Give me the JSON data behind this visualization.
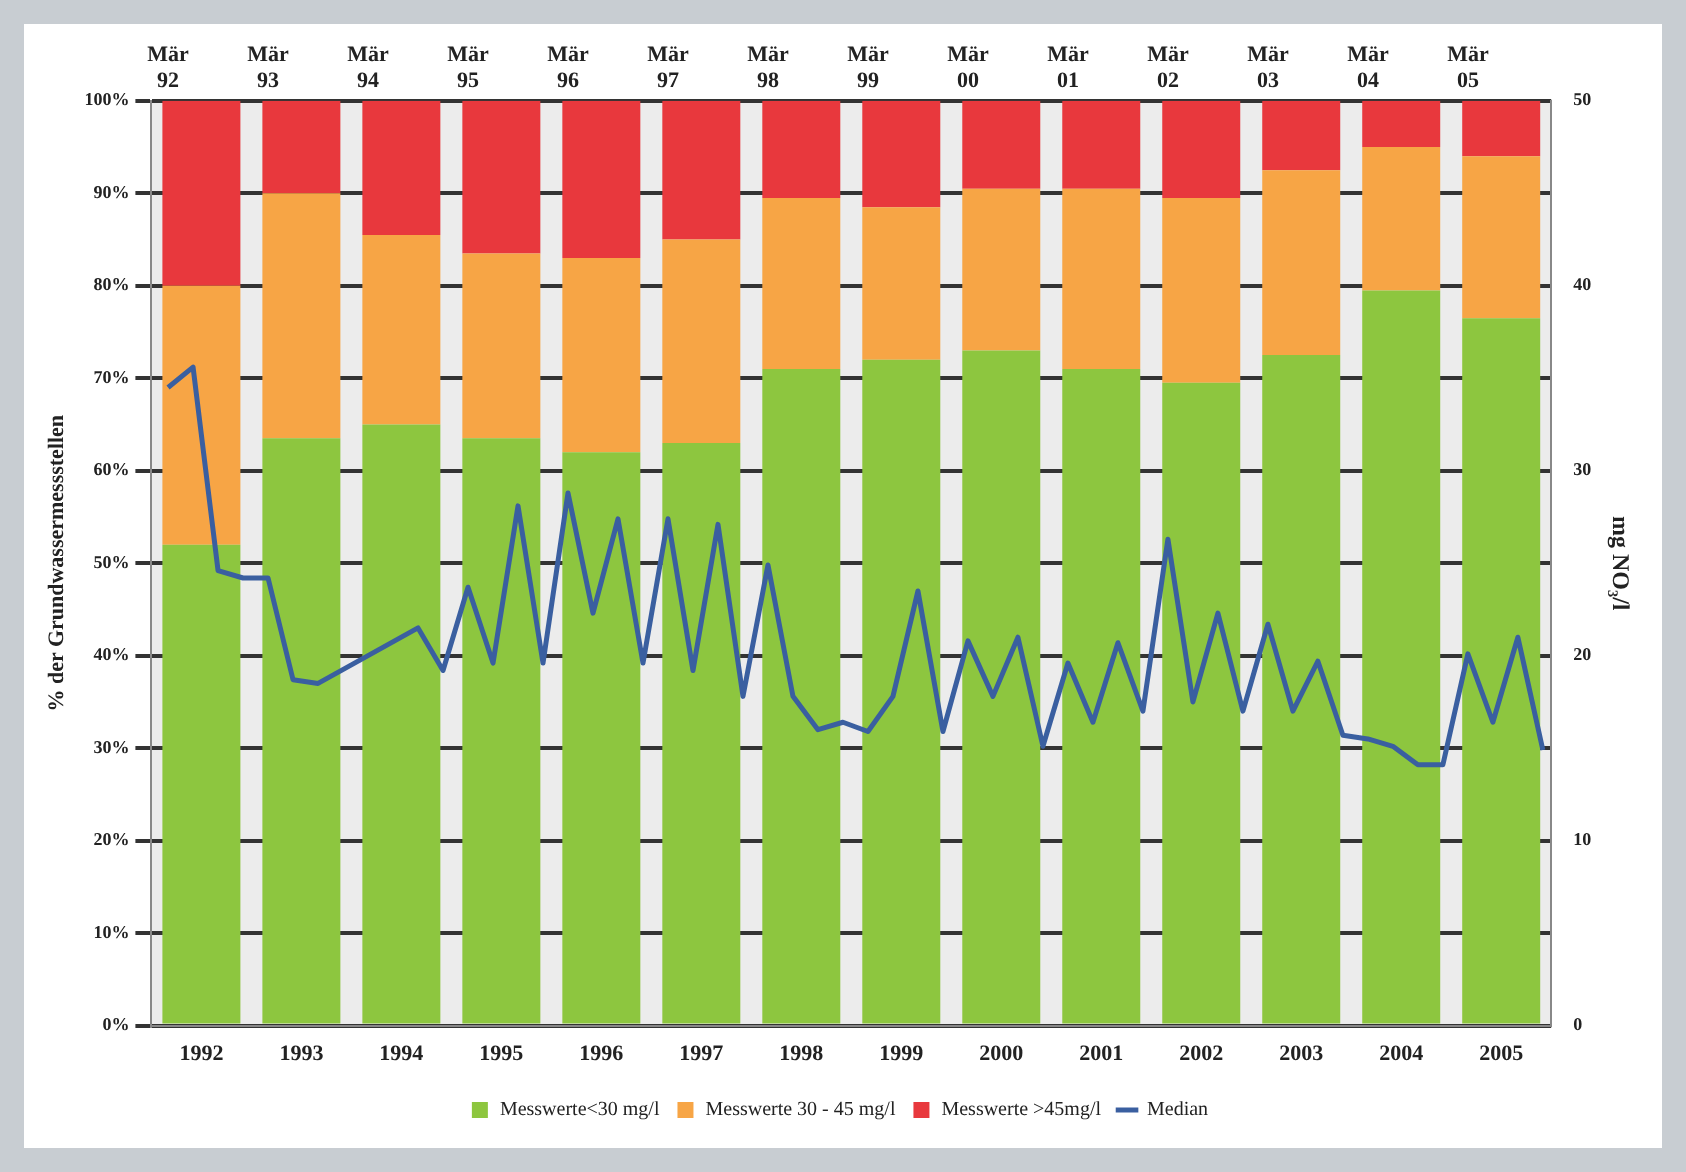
{
  "chart_data": {
    "type": "bar",
    "stacked": true,
    "ylabel": "% der Grundwassermessstellen",
    "y2label": "mg NO₃/l",
    "x": [
      "1992-07",
      "1993-07",
      "1994-07",
      "1995-07",
      "1996-07",
      "1997-07",
      "1998-07",
      "1999-07",
      "2000-07",
      "2001-07",
      "2002-07",
      "2003-07",
      "2004-07",
      "2005-07"
    ],
    "xlim": [
      "1992-01",
      "2006-01"
    ],
    "xticks": [
      {
        "value": "1992-07",
        "label": "1992"
      },
      {
        "value": "1993-07",
        "label": "1993"
      },
      {
        "value": "1994-07",
        "label": "1994"
      },
      {
        "value": "1995-07",
        "label": "1995"
      },
      {
        "value": "1996-07",
        "label": "1996"
      },
      {
        "value": "1997-07",
        "label": "1997"
      },
      {
        "value": "1998-07",
        "label": "1998"
      },
      {
        "value": "1999-07",
        "label": "1999"
      },
      {
        "value": "2000-07",
        "label": "2000"
      },
      {
        "value": "2001-07",
        "label": "2001"
      },
      {
        "value": "2002-07",
        "label": "2002"
      },
      {
        "value": "2003-07",
        "label": "2003"
      },
      {
        "value": "2004-07",
        "label": "2004"
      },
      {
        "value": "2005-07",
        "label": "2005"
      }
    ],
    "series": [
      {
        "name": "Messwerte<30 mg/l",
        "color": "#8dc63f",
        "values": [
          52,
          63.5,
          65,
          63.5,
          62,
          63,
          71,
          72,
          73,
          71,
          69.5,
          72.5,
          79.5,
          76.5
        ]
      },
      {
        "name": "Messwerte 30 - 45 mg/l",
        "color": "#f7a545",
        "values": [
          28,
          26.5,
          20.5,
          20,
          21,
          22,
          18.5,
          16.5,
          17.5,
          19.5,
          20,
          20,
          15.5,
          17.5
        ]
      },
      {
        "name": "Messwerte >45mg/l",
        "color": "#e8383d",
        "values": [
          20,
          10,
          14.5,
          16.5,
          17,
          15,
          10.5,
          11.5,
          9.5,
          9.5,
          10.5,
          7.5,
          5,
          6
        ]
      },
      {
        "name": "Median",
        "type": "line",
        "axis": "y2",
        "color": "#3a5fa0",
        "marker": "none",
        "x": [
          "1992-03",
          "1992-06",
          "1992-09",
          "1992-12",
          "1993-03",
          "1993-06",
          "1993-09",
          "1994-09",
          "1994-12",
          "1995-03",
          "1995-06",
          "1995-09",
          "1995-12",
          "1996-03",
          "1996-06",
          "1996-09",
          "1996-12",
          "1997-03",
          "1997-06",
          "1997-09",
          "1997-12",
          "1998-03",
          "1998-06",
          "1998-09",
          "1998-12",
          "1999-03",
          "1999-06",
          "1999-09",
          "1999-12",
          "2000-03",
          "2000-06",
          "2000-09",
          "2000-12",
          "2001-03",
          "2001-06",
          "2001-09",
          "2001-12",
          "2002-03",
          "2002-06",
          "2002-09",
          "2002-12",
          "2003-03",
          "2003-06",
          "2003-09",
          "2003-12",
          "2004-03",
          "2004-06",
          "2004-09",
          "2004-12",
          "2005-03",
          "2005-06",
          "2005-09",
          "2005-12"
        ],
        "values": [
          34.5,
          35.6,
          24.6,
          24.2,
          24.2,
          18.7,
          18.5,
          21.5,
          19.2,
          23.7,
          19.6,
          28.1,
          19.6,
          28.8,
          22.3,
          27.4,
          19.6,
          27.4,
          19.2,
          27.1,
          17.8,
          24.9,
          17.8,
          16,
          16.4,
          15.9,
          17.8,
          23.5,
          15.9,
          20.8,
          17.8,
          21,
          15.1,
          19.6,
          16.4,
          20.7,
          17,
          26.3,
          17.5,
          22.3,
          17,
          21.7,
          17,
          19.7,
          15.7,
          15.5,
          15.1,
          14.1,
          14.1,
          20.1,
          16.4,
          21,
          14.9
        ]
      }
    ],
    "ylim": [
      0,
      100
    ],
    "yticks": [
      {
        "value": 0,
        "label": "0%"
      },
      {
        "value": 10,
        "label": "10%"
      },
      {
        "value": 20,
        "label": "20%"
      },
      {
        "value": 30,
        "label": "30%"
      },
      {
        "value": 40,
        "label": "40%"
      },
      {
        "value": 50,
        "label": "50%"
      },
      {
        "value": 60,
        "label": "60%"
      },
      {
        "value": 70,
        "label": "70%"
      },
      {
        "value": 80,
        "label": "80%"
      },
      {
        "value": 90,
        "label": "90%"
      },
      {
        "value": 100,
        "label": "100%"
      }
    ],
    "y2lim": [
      0,
      50
    ],
    "y2ticks": [
      0,
      10,
      20,
      30,
      40,
      50
    ],
    "x2lim": [
      "1992-01",
      "2006-01"
    ],
    "x2ticks": [
      {
        "value": "1992-03",
        "label": "Mär 92"
      },
      {
        "value": "1993-03",
        "label": "Mär 93"
      },
      {
        "value": "1994-03",
        "label": "Mär 94"
      },
      {
        "value": "1995-03",
        "label": "Mär 95"
      },
      {
        "value": "1996-03",
        "label": "Mär 96"
      },
      {
        "value": "1997-03",
        "label": "Mär 97"
      },
      {
        "value": "1998-03",
        "label": "Mär 98"
      },
      {
        "value": "1999-03",
        "label": "Mär 99"
      },
      {
        "value": "2000-03",
        "label": "Mär 00"
      },
      {
        "value": "2001-03",
        "label": "Mär 01"
      },
      {
        "value": "2002-03",
        "label": "Mär 02"
      },
      {
        "value": "2003-03",
        "label": "Mär 03"
      },
      {
        "value": "2004-03",
        "label": "Mär 04"
      },
      {
        "value": "2005-03",
        "label": "Mär 05"
      }
    ],
    "grid": "y",
    "legend": "bottom"
  }
}
